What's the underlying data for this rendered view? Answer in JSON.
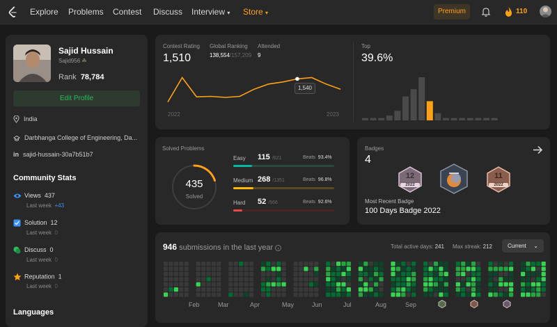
{
  "nav": {
    "items": [
      "Explore",
      "Problems",
      "Contest",
      "Discuss",
      "Interview",
      "Store"
    ],
    "premium": "Premium",
    "streak": "110"
  },
  "profile": {
    "name": "Sajid Hussain",
    "username": "Sajid956",
    "rank_label": "Rank",
    "rank": "78,784",
    "edit": "Edit Profile",
    "location": "India",
    "college": "Darbhanga College of Engineering, Da...",
    "linkedin": "sajid-hussain-30a7b51b7"
  },
  "community": {
    "title": "Community Stats",
    "stats": [
      {
        "label": "Views",
        "value": "437",
        "sub_label": "Last week",
        "sub_value": "+43"
      },
      {
        "label": "Solution",
        "value": "12",
        "sub_label": "Last week",
        "sub_value": "0"
      },
      {
        "label": "Discuss",
        "value": "0",
        "sub_label": "Last week",
        "sub_value": "0"
      },
      {
        "label": "Reputation",
        "value": "1",
        "sub_label": "Last week",
        "sub_value": "0"
      }
    ],
    "languages": "Languages"
  },
  "contest": {
    "rating_label": "Contest Rating",
    "rating": "1,510",
    "global_label": "Global Ranking",
    "global_rank": "138,554",
    "global_total": "/157,209",
    "attended_label": "Attended",
    "attended": "9",
    "tooltip": "1,540",
    "year_start": "2022",
    "year_end": "2023",
    "top_label": "Top",
    "top_value": "39.6%"
  },
  "chart_data": {
    "type": "line",
    "series": [
      {
        "values": [
          1450,
          1545,
          1470,
          1472,
          1468,
          1472,
          1500,
          1520,
          1528,
          1540,
          1545,
          1520,
          1500
        ]
      }
    ],
    "x": [
      "2022",
      "",
      "",
      "",
      "",
      "",
      "",
      "",
      "",
      "",
      "",
      "",
      "2023"
    ],
    "highlight_value": 1540
  },
  "histogram": {
    "values": [
      1,
      1,
      1,
      2,
      4,
      10,
      13,
      18,
      8,
      3,
      1,
      1,
      1,
      1,
      1,
      1,
      1
    ],
    "highlight_index": 8,
    "colors": {
      "normal": "#4a4a4a",
      "highlight": "#ffa116"
    }
  },
  "solved": {
    "label": "Solved Problems",
    "total": "435",
    "total_label": "Solved",
    "difficulties": [
      {
        "name": "Easy",
        "count": "115",
        "total": "/621",
        "beats_label": "Beats",
        "beats": "93.4%",
        "fraction": 0.185,
        "color": "#00b8a3",
        "track": "#2a4a3f"
      },
      {
        "name": "Medium",
        "count": "268",
        "total": "/1351",
        "beats_label": "Beats",
        "beats": "96.8%",
        "fraction": 0.198,
        "color": "#ffb800",
        "track": "#5a4a22"
      },
      {
        "name": "Hard",
        "count": "52",
        "total": "/566",
        "beats_label": "Beats",
        "beats": "92.6%",
        "fraction": 0.092,
        "color": "#ef4743",
        "track": "#4a2424"
      }
    ]
  },
  "badges": {
    "label": "Badges",
    "count": "4",
    "recent_label": "Most Recent Badge",
    "recent": "100 Days Badge 2022",
    "items": [
      {
        "num": "12",
        "year": "2022"
      },
      {
        "num": "",
        "year": ""
      },
      {
        "num": "11",
        "year": "2022"
      }
    ]
  },
  "submissions": {
    "count": "946",
    "label": "submissions in the last year",
    "active_label": "Total active days:",
    "active": "241",
    "streak_label": "Max streak:",
    "streak": "212",
    "dropdown": "Current",
    "months": [
      "Feb",
      "Mar",
      "Apr",
      "May",
      "Jun",
      "Jul",
      "Aug",
      "Sep"
    ]
  }
}
